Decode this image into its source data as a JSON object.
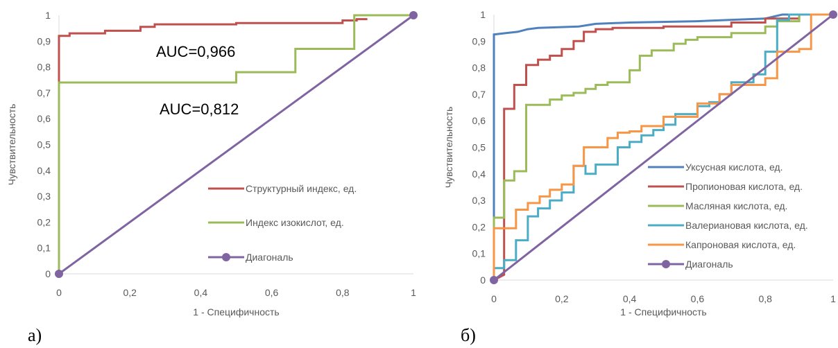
{
  "chart_data": [
    {
      "type": "line",
      "panel_label": "а)",
      "xlabel": "1 - Специфичность",
      "ylabel": "Чувствительность",
      "xlim": [
        0,
        1
      ],
      "ylim": [
        0,
        1
      ],
      "x_ticks": [
        "0",
        "0,2",
        "0,4",
        "0,6",
        "0,8",
        "1"
      ],
      "y_ticks": [
        "0",
        "0,1",
        "0,2",
        "0,3",
        "0,4",
        "0,5",
        "0,6",
        "0,7",
        "0,8",
        "0,9",
        "1"
      ],
      "grid": false,
      "legend_position": "right",
      "annotations": [
        "AUC=0,966",
        "AUC=0,812"
      ],
      "series": [
        {
          "name": "Структурный индекс, ед.",
          "color": "#c0504d",
          "step": true,
          "points": [
            [
              0,
              0
            ],
            [
              0,
              0.92
            ],
            [
              0.03,
              0.92
            ],
            [
              0.03,
              0.93
            ],
            [
              0.13,
              0.93
            ],
            [
              0.13,
              0.94
            ],
            [
              0.23,
              0.94
            ],
            [
              0.23,
              0.955
            ],
            [
              0.27,
              0.955
            ],
            [
              0.27,
              0.965
            ],
            [
              0.5,
              0.965
            ],
            [
              0.5,
              0.97
            ],
            [
              0.8,
              0.97
            ],
            [
              0.8,
              0.98
            ],
            [
              0.84,
              0.98
            ],
            [
              0.84,
              0.985
            ],
            [
              0.87,
              0.985
            ]
          ]
        },
        {
          "name": "Индекс изокислот, ед.",
          "color": "#9bbb59",
          "step": true,
          "points": [
            [
              0,
              0
            ],
            [
              0,
              0.74
            ],
            [
              0.5,
              0.74
            ],
            [
              0.5,
              0.78
            ],
            [
              0.667,
              0.78
            ],
            [
              0.667,
              0.87
            ],
            [
              0.833,
              0.87
            ],
            [
              0.833,
              1
            ],
            [
              1,
              1
            ]
          ]
        },
        {
          "name": "Диагональ",
          "color": "#8064a2",
          "marker": "circle",
          "points": [
            [
              0,
              0
            ],
            [
              1,
              1
            ]
          ]
        }
      ]
    },
    {
      "type": "line",
      "panel_label": "б)",
      "xlabel": "1 - Специфичность",
      "ylabel": "Чувствительность",
      "xlim": [
        0,
        1
      ],
      "ylim": [
        0,
        1
      ],
      "x_ticks": [
        "0",
        "0,2",
        "0,4",
        "0,6",
        "0,8",
        "1"
      ],
      "y_ticks": [
        "0",
        "0,1",
        "0,2",
        "0,3",
        "0,4",
        "0,5",
        "0,6",
        "0,7",
        "0,8",
        "0,9",
        "1"
      ],
      "grid": false,
      "legend_position": "right",
      "series": [
        {
          "name": "Уксусная кислота, ед.",
          "color": "#4f81bd",
          "points": [
            [
              0,
              0
            ],
            [
              0,
              0.925
            ],
            [
              0.035,
              0.93
            ],
            [
              0.07,
              0.935
            ],
            [
              0.1,
              0.945
            ],
            [
              0.13,
              0.95
            ],
            [
              0.25,
              0.955
            ],
            [
              0.3,
              0.965
            ],
            [
              0.4,
              0.97
            ],
            [
              0.6,
              0.975
            ],
            [
              0.8,
              0.985
            ],
            [
              0.85,
              1
            ],
            [
              1,
              1
            ]
          ]
        },
        {
          "name": "Пропионовая кислота, ед.",
          "color": "#c0504d",
          "points": [
            [
              0,
              0
            ],
            [
              0.03,
              0.02
            ],
            [
              0.03,
              0.645
            ],
            [
              0.06,
              0.645
            ],
            [
              0.06,
              0.735
            ],
            [
              0.095,
              0.735
            ],
            [
              0.095,
              0.81
            ],
            [
              0.13,
              0.81
            ],
            [
              0.13,
              0.83
            ],
            [
              0.165,
              0.83
            ],
            [
              0.165,
              0.845
            ],
            [
              0.2,
              0.845
            ],
            [
              0.2,
              0.87
            ],
            [
              0.235,
              0.87
            ],
            [
              0.235,
              0.9
            ],
            [
              0.265,
              0.9
            ],
            [
              0.265,
              0.935
            ],
            [
              0.3,
              0.935
            ],
            [
              0.3,
              0.945
            ],
            [
              0.35,
              0.945
            ],
            [
              0.35,
              0.95
            ],
            [
              0.5,
              0.95
            ],
            [
              0.5,
              0.955
            ],
            [
              0.7,
              0.955
            ],
            [
              0.7,
              0.97
            ],
            [
              0.8,
              0.97
            ],
            [
              0.8,
              0.985
            ],
            [
              0.9,
              0.985
            ],
            [
              0.9,
              1
            ],
            [
              1,
              1
            ]
          ]
        },
        {
          "name": "Масляная кислота, ед.",
          "color": "#9bbb59",
          "points": [
            [
              0,
              0
            ],
            [
              0,
              0.235
            ],
            [
              0.03,
              0.235
            ],
            [
              0.03,
              0.375
            ],
            [
              0.06,
              0.375
            ],
            [
              0.06,
              0.41
            ],
            [
              0.095,
              0.41
            ],
            [
              0.095,
              0.66
            ],
            [
              0.165,
              0.66
            ],
            [
              0.165,
              0.68
            ],
            [
              0.2,
              0.68
            ],
            [
              0.2,
              0.695
            ],
            [
              0.235,
              0.695
            ],
            [
              0.235,
              0.705
            ],
            [
              0.27,
              0.705
            ],
            [
              0.27,
              0.72
            ],
            [
              0.3,
              0.72
            ],
            [
              0.3,
              0.735
            ],
            [
              0.335,
              0.735
            ],
            [
              0.335,
              0.745
            ],
            [
              0.4,
              0.745
            ],
            [
              0.4,
              0.79
            ],
            [
              0.43,
              0.79
            ],
            [
              0.43,
              0.845
            ],
            [
              0.465,
              0.845
            ],
            [
              0.465,
              0.865
            ],
            [
              0.53,
              0.865
            ],
            [
              0.53,
              0.89
            ],
            [
              0.565,
              0.89
            ],
            [
              0.565,
              0.905
            ],
            [
              0.6,
              0.905
            ],
            [
              0.6,
              0.915
            ],
            [
              0.7,
              0.915
            ],
            [
              0.7,
              0.93
            ],
            [
              0.8,
              0.93
            ],
            [
              0.8,
              0.955
            ],
            [
              0.835,
              0.955
            ],
            [
              0.835,
              0.975
            ],
            [
              0.9,
              0.975
            ],
            [
              0.9,
              1
            ],
            [
              1,
              1
            ]
          ]
        },
        {
          "name": "Валериановая кислота, ед.",
          "color": "#4bacc6",
          "points": [
            [
              0,
              0
            ],
            [
              0,
              0.045
            ],
            [
              0.03,
              0.045
            ],
            [
              0.03,
              0.075
            ],
            [
              0.065,
              0.075
            ],
            [
              0.065,
              0.15
            ],
            [
              0.1,
              0.15
            ],
            [
              0.1,
              0.24
            ],
            [
              0.13,
              0.24
            ],
            [
              0.13,
              0.27
            ],
            [
              0.165,
              0.27
            ],
            [
              0.165,
              0.3
            ],
            [
              0.2,
              0.3
            ],
            [
              0.2,
              0.33
            ],
            [
              0.235,
              0.33
            ],
            [
              0.235,
              0.43
            ],
            [
              0.27,
              0.43
            ],
            [
              0.27,
              0.4
            ],
            [
              0.3,
              0.4
            ],
            [
              0.3,
              0.435
            ],
            [
              0.365,
              0.435
            ],
            [
              0.365,
              0.5
            ],
            [
              0.4,
              0.5
            ],
            [
              0.4,
              0.52
            ],
            [
              0.435,
              0.52
            ],
            [
              0.435,
              0.545
            ],
            [
              0.47,
              0.545
            ],
            [
              0.47,
              0.565
            ],
            [
              0.5,
              0.565
            ],
            [
              0.5,
              0.585
            ],
            [
              0.535,
              0.585
            ],
            [
              0.535,
              0.625
            ],
            [
              0.6,
              0.625
            ],
            [
              0.6,
              0.655
            ],
            [
              0.635,
              0.655
            ],
            [
              0.635,
              0.67
            ],
            [
              0.665,
              0.67
            ],
            [
              0.665,
              0.7
            ],
            [
              0.7,
              0.7
            ],
            [
              0.7,
              0.745
            ],
            [
              0.765,
              0.745
            ],
            [
              0.765,
              0.775
            ],
            [
              0.8,
              0.775
            ],
            [
              0.8,
              0.86
            ],
            [
              0.835,
              0.86
            ],
            [
              0.835,
              0.98
            ],
            [
              0.87,
              0.98
            ],
            [
              0.87,
              1
            ],
            [
              1,
              1
            ]
          ]
        },
        {
          "name": "Капроновая кислота, ед.",
          "color": "#f79646",
          "points": [
            [
              0,
              0
            ],
            [
              0,
              0.195
            ],
            [
              0.065,
              0.195
            ],
            [
              0.065,
              0.265
            ],
            [
              0.1,
              0.265
            ],
            [
              0.1,
              0.29
            ],
            [
              0.135,
              0.29
            ],
            [
              0.135,
              0.315
            ],
            [
              0.165,
              0.315
            ],
            [
              0.165,
              0.34
            ],
            [
              0.2,
              0.34
            ],
            [
              0.2,
              0.36
            ],
            [
              0.235,
              0.36
            ],
            [
              0.235,
              0.43
            ],
            [
              0.265,
              0.43
            ],
            [
              0.265,
              0.5
            ],
            [
              0.335,
              0.5
            ],
            [
              0.335,
              0.535
            ],
            [
              0.365,
              0.535
            ],
            [
              0.365,
              0.555
            ],
            [
              0.4,
              0.555
            ],
            [
              0.4,
              0.56
            ],
            [
              0.435,
              0.56
            ],
            [
              0.435,
              0.58
            ],
            [
              0.5,
              0.58
            ],
            [
              0.5,
              0.615
            ],
            [
              0.6,
              0.615
            ],
            [
              0.6,
              0.665
            ],
            [
              0.665,
              0.665
            ],
            [
              0.665,
              0.7
            ],
            [
              0.7,
              0.7
            ],
            [
              0.7,
              0.735
            ],
            [
              0.8,
              0.735
            ],
            [
              0.8,
              0.76
            ],
            [
              0.835,
              0.76
            ],
            [
              0.835,
              0.86
            ],
            [
              0.9,
              0.86
            ],
            [
              0.9,
              0.87
            ],
            [
              0.935,
              0.87
            ],
            [
              0.935,
              1
            ],
            [
              1,
              1
            ]
          ]
        },
        {
          "name": "Диагональ",
          "color": "#8064a2",
          "marker": "circle",
          "points": [
            [
              0,
              0
            ],
            [
              1,
              1
            ]
          ]
        }
      ]
    }
  ]
}
